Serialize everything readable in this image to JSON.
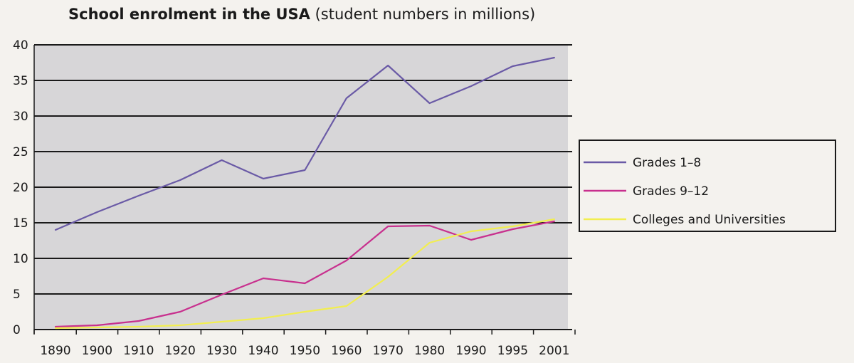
{
  "chart_data": {
    "type": "line",
    "title": "School enrolment in the USA",
    "subtitle": "(student numbers in millions)",
    "xlabel": "",
    "ylabel": "",
    "x": [
      "1890",
      "1900",
      "1910",
      "1920",
      "1930",
      "1940",
      "1950",
      "1960",
      "1970",
      "1980",
      "1990",
      "1995",
      "2001"
    ],
    "ylim": [
      0,
      40
    ],
    "yticks": [
      0,
      5,
      10,
      15,
      20,
      25,
      30,
      35,
      40
    ],
    "grid": true,
    "legend_position": "right",
    "series": [
      {
        "name": "Grades 1–8",
        "color": "#6a5aa6",
        "values": [
          14,
          16.5,
          18.8,
          21,
          23.8,
          21.2,
          22.4,
          32.5,
          37.1,
          31.8,
          34.2,
          37,
          38.2
        ]
      },
      {
        "name": "Grades 9–12",
        "color": "#c8308e",
        "values": [
          0.4,
          0.6,
          1.2,
          2.5,
          4.9,
          7.2,
          6.5,
          9.7,
          14.5,
          14.6,
          12.6,
          14.1,
          15.2
        ]
      },
      {
        "name": "Colleges and Universities",
        "color": "#f2ee50",
        "values": [
          0.2,
          0.3,
          0.4,
          0.6,
          1.1,
          1.6,
          2.5,
          3.3,
          7.4,
          12.2,
          13.8,
          14.5,
          15.5
        ]
      }
    ]
  }
}
